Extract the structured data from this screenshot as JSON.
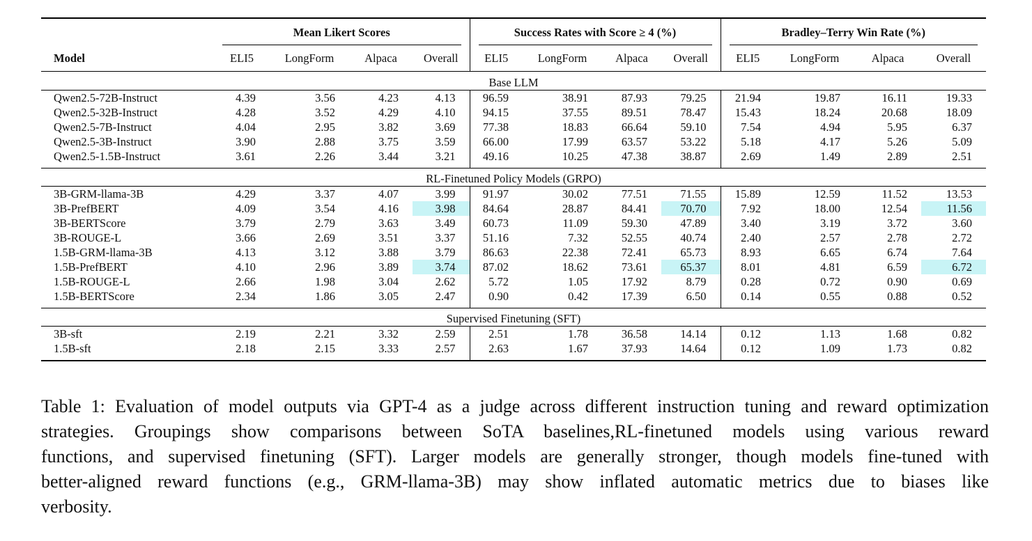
{
  "table": {
    "group_headers": [
      "Mean Likert Scores",
      "Success Rates with Score ≥ 4 (%)",
      "Bradley–Terry Win Rate (%)"
    ],
    "model_header": "Model",
    "sub_headers": [
      "ELI5",
      "LongForm",
      "Alpaca",
      "Overall",
      "ELI5",
      "LongForm",
      "Alpaca",
      "Overall",
      "ELI5",
      "LongForm",
      "Alpaca",
      "Overall"
    ],
    "sections": [
      {
        "title": "Base LLM",
        "rows": [
          {
            "model": "Qwen2.5-72B-Instruct",
            "values": [
              "4.39",
              "3.56",
              "4.23",
              "4.13",
              "96.59",
              "38.91",
              "87.93",
              "79.25",
              "21.94",
              "19.87",
              "16.11",
              "19.33"
            ]
          },
          {
            "model": "Qwen2.5-32B-Instruct",
            "values": [
              "4.28",
              "3.52",
              "4.29",
              "4.10",
              "94.15",
              "37.55",
              "89.51",
              "78.47",
              "15.43",
              "18.24",
              "20.68",
              "18.09"
            ]
          },
          {
            "model": "Qwen2.5-7B-Instruct",
            "values": [
              "4.04",
              "2.95",
              "3.82",
              "3.69",
              "77.38",
              "18.83",
              "66.64",
              "59.10",
              "7.54",
              "4.94",
              "5.95",
              "6.37"
            ]
          },
          {
            "model": "Qwen2.5-3B-Instruct",
            "values": [
              "3.90",
              "2.88",
              "3.75",
              "3.59",
              "66.00",
              "17.99",
              "63.57",
              "53.22",
              "5.18",
              "4.17",
              "5.26",
              "5.09"
            ]
          },
          {
            "model": "Qwen2.5-1.5B-Instruct",
            "values": [
              "3.61",
              "2.26",
              "3.44",
              "3.21",
              "49.16",
              "10.25",
              "47.38",
              "38.87",
              "2.69",
              "1.49",
              "2.89",
              "2.51"
            ]
          }
        ]
      },
      {
        "title": "RL-Finetuned Policy Models (GRPO)",
        "rows": [
          {
            "model": "3B-GRM-llama-3B",
            "values": [
              "4.29",
              "3.37",
              "4.07",
              "3.99",
              "91.97",
              "30.02",
              "77.51",
              "71.55",
              "15.89",
              "12.59",
              "11.52",
              "13.53"
            ]
          },
          {
            "model": "3B-PrefBERT",
            "values": [
              "4.09",
              "3.54",
              "4.16",
              "3.98",
              "84.64",
              "28.87",
              "84.41",
              "70.70",
              "7.92",
              "18.00",
              "12.54",
              "11.56"
            ],
            "highlight": true
          },
          {
            "model": "3B-BERTScore",
            "values": [
              "3.79",
              "2.79",
              "3.63",
              "3.49",
              "60.73",
              "11.09",
              "59.30",
              "47.89",
              "3.40",
              "3.19",
              "3.72",
              "3.60"
            ]
          },
          {
            "model": "3B-ROUGE-L",
            "values": [
              "3.66",
              "2.69",
              "3.51",
              "3.37",
              "51.16",
              "7.32",
              "52.55",
              "40.74",
              "2.40",
              "2.57",
              "2.78",
              "2.72"
            ]
          },
          {
            "model": "1.5B-GRM-llama-3B",
            "values": [
              "4.13",
              "3.12",
              "3.88",
              "3.79",
              "86.63",
              "22.38",
              "72.41",
              "65.73",
              "8.93",
              "6.65",
              "6.74",
              "7.64"
            ]
          },
          {
            "model": "1.5B-PrefBERT",
            "values": [
              "4.10",
              "2.96",
              "3.89",
              "3.74",
              "87.02",
              "18.62",
              "73.61",
              "65.37",
              "8.01",
              "4.81",
              "6.59",
              "6.72"
            ],
            "highlight": true
          },
          {
            "model": "1.5B-ROUGE-L",
            "values": [
              "2.66",
              "1.98",
              "3.04",
              "2.62",
              "5.72",
              "1.05",
              "17.92",
              "8.79",
              "0.28",
              "0.72",
              "0.90",
              "0.69"
            ]
          },
          {
            "model": "1.5B-BERTScore",
            "values": [
              "2.34",
              "1.86",
              "3.05",
              "2.47",
              "0.90",
              "0.42",
              "17.39",
              "6.50",
              "0.14",
              "0.55",
              "0.88",
              "0.52"
            ]
          }
        ]
      },
      {
        "title": "Supervised Finetuning (SFT)",
        "rows": [
          {
            "model": "3B-sft",
            "values": [
              "2.19",
              "2.21",
              "3.32",
              "2.59",
              "2.51",
              "1.78",
              "36.58",
              "14.14",
              "0.12",
              "1.13",
              "1.68",
              "0.82"
            ]
          },
          {
            "model": "1.5B-sft",
            "values": [
              "2.18",
              "2.15",
              "3.33",
              "2.57",
              "2.63",
              "1.67",
              "37.93",
              "14.64",
              "0.12",
              "1.09",
              "1.73",
              "0.82"
            ]
          }
        ]
      }
    ],
    "highlight_color": "#c8f4f6"
  },
  "caption": {
    "lines": [
      "Table 1: Evaluation of model outputs via GPT-4 as a judge across different instruction tuning and reward optimization",
      "strategies.  Groupings show comparisons between SoTA baselines,RL-finetuned models using various reward",
      "functions, and supervised finetuning (SFT). Larger models are generally stronger, though models fine-tuned with",
      "better-aligned reward functions (e.g., GRM-llama-3B) may show inflated automatic metrics due to biases like",
      "verbosity."
    ]
  }
}
